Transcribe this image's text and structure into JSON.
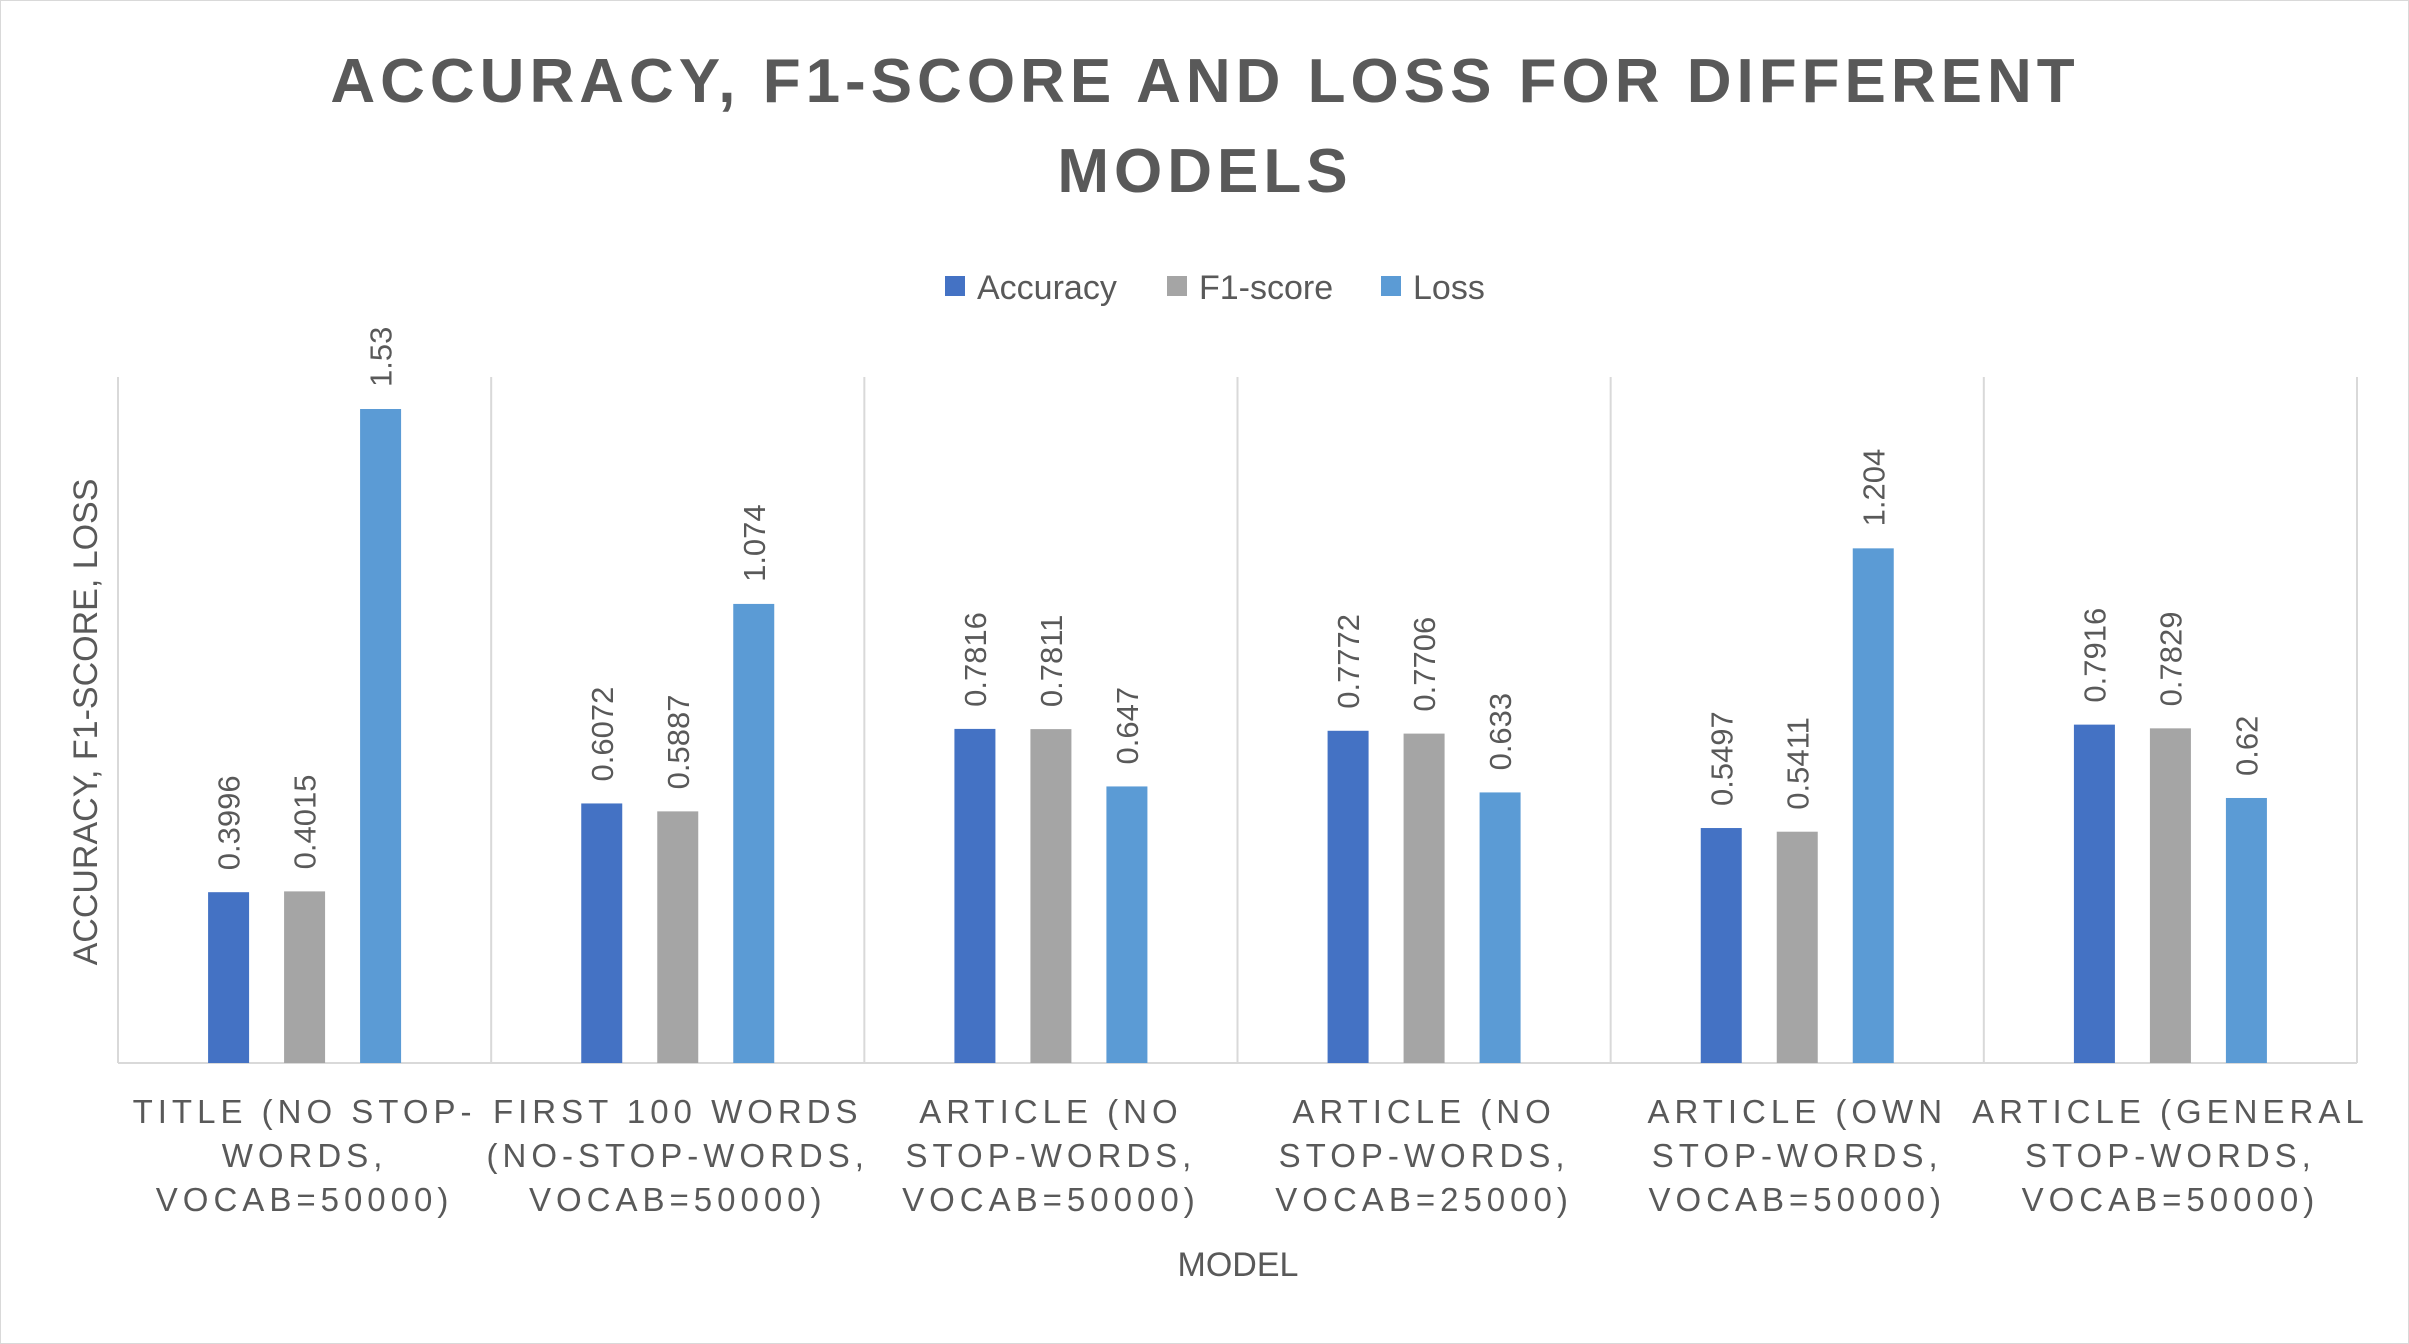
{
  "chart_data": {
    "type": "bar",
    "title_lines": [
      "ACCURACY, F1-SCORE AND LOSS FOR DIFFERENT",
      "MODELS"
    ],
    "xlabel": "MODEL",
    "ylabel": "ACCURACY, F1-SCORE, LOSS",
    "legend_position": "top",
    "grid": "vertical category separators",
    "ylim": [
      0,
      1.7
    ],
    "categories": [
      [
        "TITLE (NO STOP-",
        "WORDS,",
        "VOCAB=50000)"
      ],
      [
        "FIRST 100 WORDS",
        "(NO-STOP-WORDS,",
        "VOCAB=50000)"
      ],
      [
        "ARTICLE (NO",
        "STOP-WORDS,",
        "VOCAB=50000)"
      ],
      [
        "ARTICLE (NO",
        "STOP-WORDS,",
        "VOCAB=25000)"
      ],
      [
        "ARTICLE (OWN",
        "STOP-WORDS,",
        "VOCAB=50000)"
      ],
      [
        "ARTICLE (GENERAL",
        "STOP-WORDS,",
        "VOCAB=50000)"
      ]
    ],
    "series": [
      {
        "name": "Accuracy",
        "color": "#4472c4",
        "values": [
          0.3996,
          0.6072,
          0.7816,
          0.7772,
          0.5497,
          0.7916
        ],
        "labels": [
          "0.3996",
          "0.6072",
          "0.7816",
          "0.7772",
          "0.5497",
          "0.7916"
        ]
      },
      {
        "name": "F1-score",
        "color": "#a5a5a5",
        "values": [
          0.4015,
          0.5887,
          0.7811,
          0.7706,
          0.5411,
          0.7829
        ],
        "labels": [
          "0.4015",
          "0.5887",
          "0.7811",
          "0.7706",
          "0.5411",
          "0.7829"
        ]
      },
      {
        "name": "Loss",
        "color": "#5b9bd5",
        "values": [
          1.53,
          1.074,
          0.647,
          0.633,
          1.204,
          0.62
        ],
        "labels": [
          "1.53",
          "1.074",
          "0.647",
          "0.633",
          "1.204",
          "0.62"
        ]
      }
    ]
  }
}
